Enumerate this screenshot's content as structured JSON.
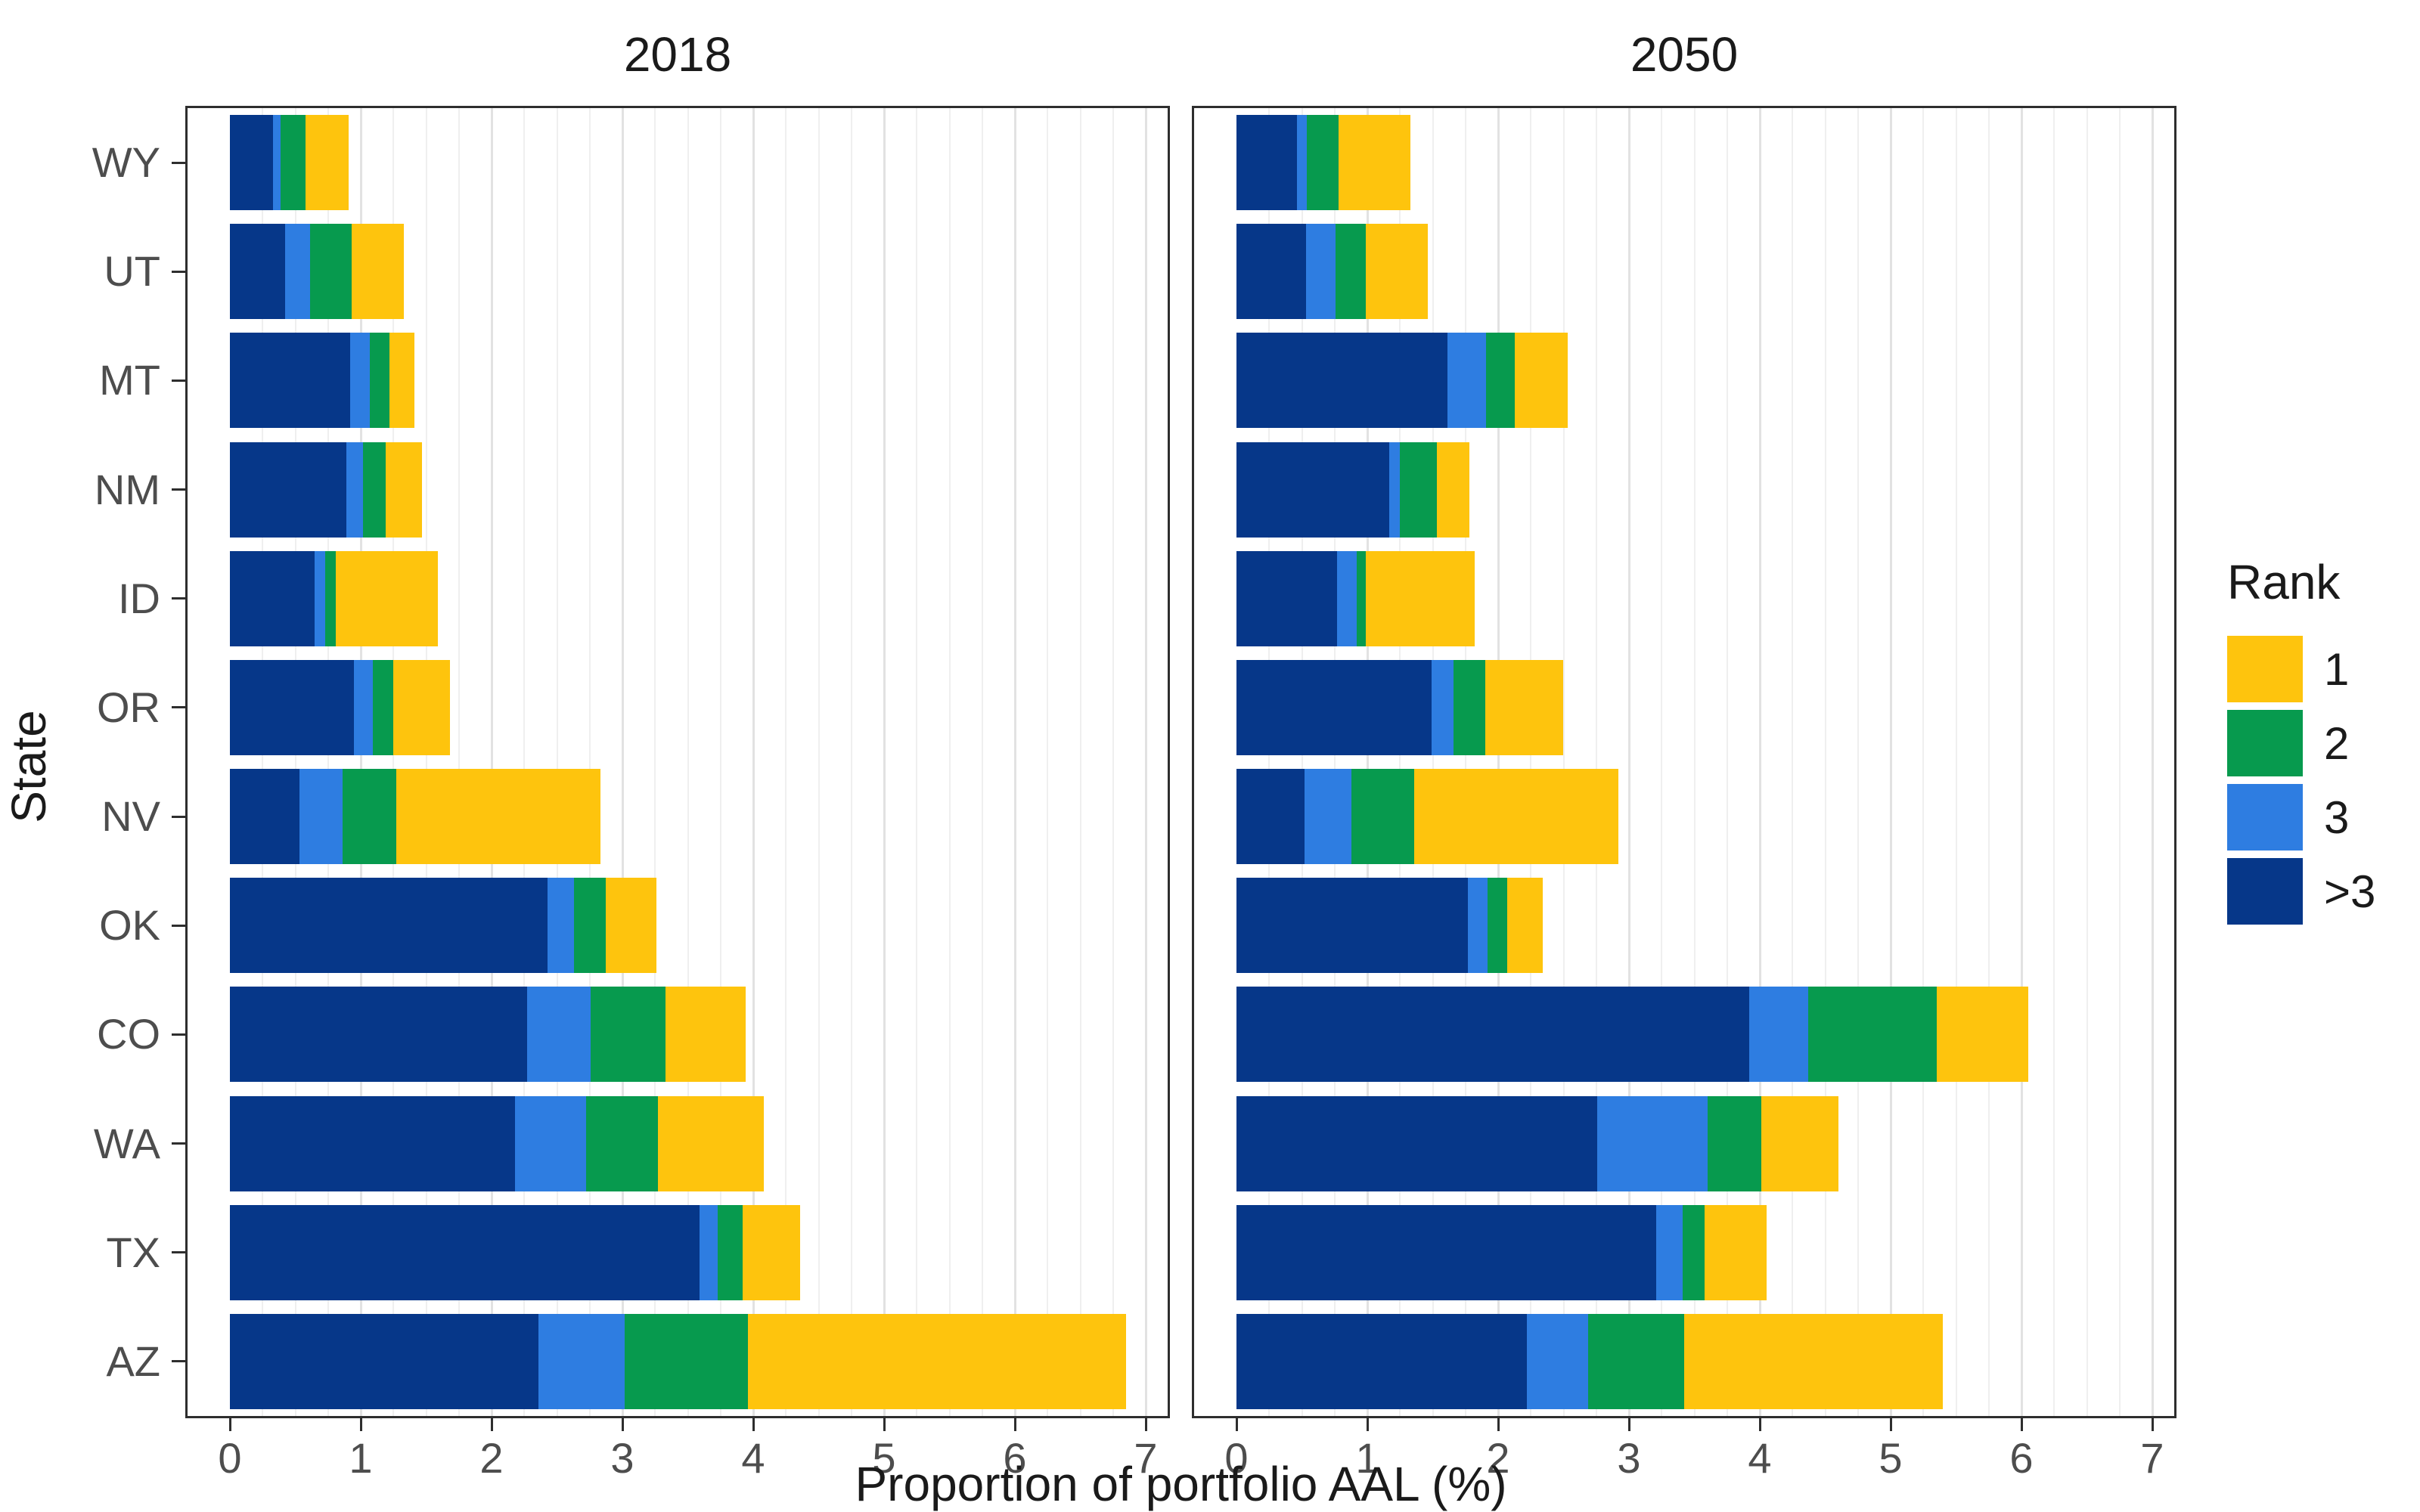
{
  "figure": {
    "facet_titles": [
      "2018",
      "2050"
    ],
    "xlabel": "Proportion of portfolio AAL (%)",
    "ylabel": "State",
    "legend_title": "Rank"
  },
  "chart_data": {
    "type": "bar",
    "orientation": "horizontal",
    "stacked": true,
    "grid": "major-and-minor",
    "legend_position": "right",
    "categories_top_to_bottom": [
      "WY",
      "UT",
      "MT",
      "NM",
      "ID",
      "OR",
      "NV",
      "OK",
      "CO",
      "WA",
      "TX",
      "AZ"
    ],
    "xlim": [
      0,
      7
    ],
    "xticks": [
      0,
      1,
      2,
      3,
      4,
      5,
      6,
      7
    ],
    "minor_grid_step": 0.25,
    "stack_order_left_to_right": [
      ">3",
      "3",
      "2",
      "1"
    ],
    "legend": {
      "title": "Rank",
      "entries": [
        {
          "label": "1",
          "color": "#FEC40D"
        },
        {
          "label": "2",
          "color": "#079A4E"
        },
        {
          "label": "3",
          "color": "#2E7DE1"
        },
        {
          "label": ">3",
          "color": "#063789"
        }
      ]
    },
    "facets": [
      {
        "title": "2018",
        "series": [
          {
            "name": ">3",
            "values": [
              0.33,
              0.42,
              0.92,
              0.89,
              0.65,
              0.95,
              0.53,
              2.43,
              2.27,
              2.18,
              3.59,
              2.36
            ]
          },
          {
            "name": "3",
            "values": [
              0.06,
              0.19,
              0.15,
              0.13,
              0.08,
              0.14,
              0.33,
              0.2,
              0.49,
              0.54,
              0.14,
              0.66
            ]
          },
          {
            "name": "2",
            "values": [
              0.19,
              0.32,
              0.15,
              0.17,
              0.08,
              0.16,
              0.41,
              0.24,
              0.57,
              0.55,
              0.19,
              0.94
            ]
          },
          {
            "name": "1",
            "values": [
              0.33,
              0.4,
              0.19,
              0.28,
              0.78,
              0.43,
              1.56,
              0.39,
              0.61,
              0.81,
              0.44,
              2.89
            ]
          }
        ]
      },
      {
        "title": "2050",
        "series": [
          {
            "name": ">3",
            "values": [
              0.46,
              0.53,
              1.61,
              1.17,
              0.77,
              1.49,
              0.52,
              1.77,
              3.92,
              2.76,
              3.21,
              2.22
            ]
          },
          {
            "name": "3",
            "values": [
              0.08,
              0.23,
              0.3,
              0.08,
              0.15,
              0.17,
              0.36,
              0.15,
              0.45,
              0.84,
              0.2,
              0.47
            ]
          },
          {
            "name": "2",
            "values": [
              0.24,
              0.23,
              0.22,
              0.28,
              0.07,
              0.24,
              0.48,
              0.15,
              0.98,
              0.41,
              0.17,
              0.73
            ]
          },
          {
            "name": "1",
            "values": [
              0.55,
              0.47,
              0.4,
              0.25,
              0.83,
              0.6,
              1.56,
              0.27,
              0.7,
              0.59,
              0.47,
              1.98
            ]
          }
        ]
      }
    ]
  },
  "style": {
    "rank_colors": {
      ">3": "#063789",
      "3": "#2E7DE1",
      "2": "#079A4E",
      "1": "#FEC40D"
    },
    "axis_text_color": "#4d4d4d",
    "title_text_color": "#1a1a1a",
    "panel_border_color": "#2e2e2e",
    "grid_major_color": "#e2e2e2",
    "grid_minor_color": "#efefef",
    "background_color": "#ffffff"
  }
}
